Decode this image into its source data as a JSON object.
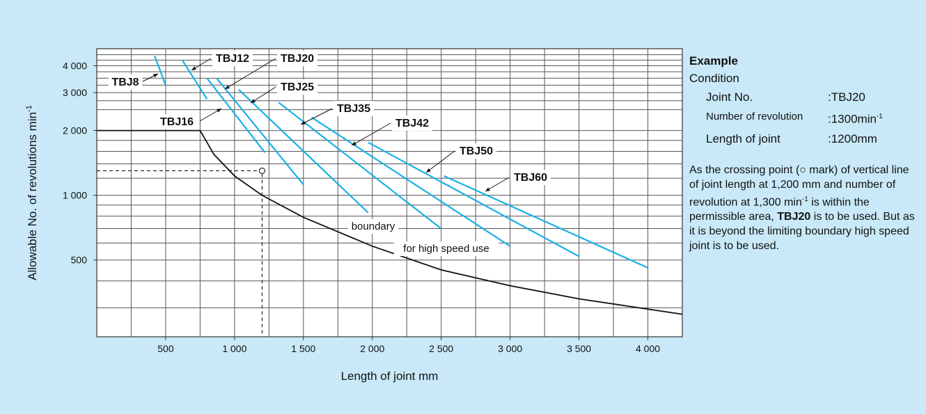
{
  "chart_data": {
    "type": "line",
    "x_scale": "linear",
    "y_scale": "log",
    "xlim": [
      0,
      4250
    ],
    "ylim": [
      220,
      4800
    ],
    "xlabel": "Length of joint   mm",
    "ylabel": "Allowable No. of revolutions   min",
    "ylabel_sup": "-1",
    "x_ticks": [
      500,
      1000,
      1500,
      2000,
      2500,
      3000,
      3500,
      4000
    ],
    "x_tick_labels": [
      "500",
      "1 000",
      "1 500",
      "2 000",
      "2 500",
      "3 000",
      "3 500",
      "4 000"
    ],
    "y_ticks": [
      500,
      1000,
      2000,
      3000,
      4000
    ],
    "y_tick_labels": [
      "500",
      "1 000",
      "2 000",
      "3 000",
      "4 000"
    ],
    "grid": true,
    "series": [
      {
        "name": "TBJ8",
        "x": [
          420,
          500
        ],
        "y": [
          4450,
          3250
        ]
      },
      {
        "name": "TBJ12",
        "x": [
          620,
          800
        ],
        "y": [
          4250,
          2800
        ]
      },
      {
        "name": "TBJ16",
        "x": [
          800,
          1220
        ],
        "y": [
          3500,
          1580
        ]
      },
      {
        "name": "TBJ20",
        "x": [
          870,
          1500
        ],
        "y": [
          3500,
          1120
        ]
      },
      {
        "name": "TBJ25",
        "x": [
          1030,
          1970
        ],
        "y": [
          3100,
          830
        ]
      },
      {
        "name": "TBJ35",
        "x": [
          1320,
          2500
        ],
        "y": [
          2700,
          700
        ]
      },
      {
        "name": "TBJ42",
        "x": [
          1560,
          3000
        ],
        "y": [
          2300,
          580
        ]
      },
      {
        "name": "TBJ50",
        "x": [
          1970,
          3500
        ],
        "y": [
          1760,
          520
        ]
      },
      {
        "name": "TBJ60",
        "x": [
          2520,
          4000
        ],
        "y": [
          1230,
          460
        ]
      }
    ],
    "boundary": {
      "x": [
        0,
        750,
        850,
        1000,
        1200,
        1500,
        2000,
        2500,
        3000,
        3500,
        4250
      ],
      "y": [
        2000,
        2000,
        1550,
        1230,
        1000,
        790,
        580,
        450,
        380,
        330,
        280
      ]
    },
    "boundary_labels": [
      "boundary",
      "for high speed use"
    ],
    "example_point": {
      "x": 1200,
      "y": 1300
    }
  },
  "example": {
    "title": "Example",
    "condition": "Condition",
    "rows": [
      {
        "key": "Joint No.",
        "value": ":TBJ20"
      },
      {
        "key": "Number of revolution",
        "value": ":1300min",
        "sup": "-1"
      },
      {
        "key": "Length of joint",
        "value": ":1200mm"
      }
    ],
    "para_1": "As the crossing point (",
    "para_mark": "○",
    "para_2": " mark) of vertical line of joint length at 1,200 mm and number of revolution at 1,300 min",
    "para_sup": "-1",
    "para_3": " is within the permissible area, ",
    "para_bold": "TBJ20",
    "para_4": " is to be used. But as it is beyond the limiting boundary high speed joint is to be used."
  },
  "colors": {
    "series": "#1ab0e6",
    "boundary": "#111111",
    "background": "#c9e9f8",
    "plot": "#ffffff"
  }
}
